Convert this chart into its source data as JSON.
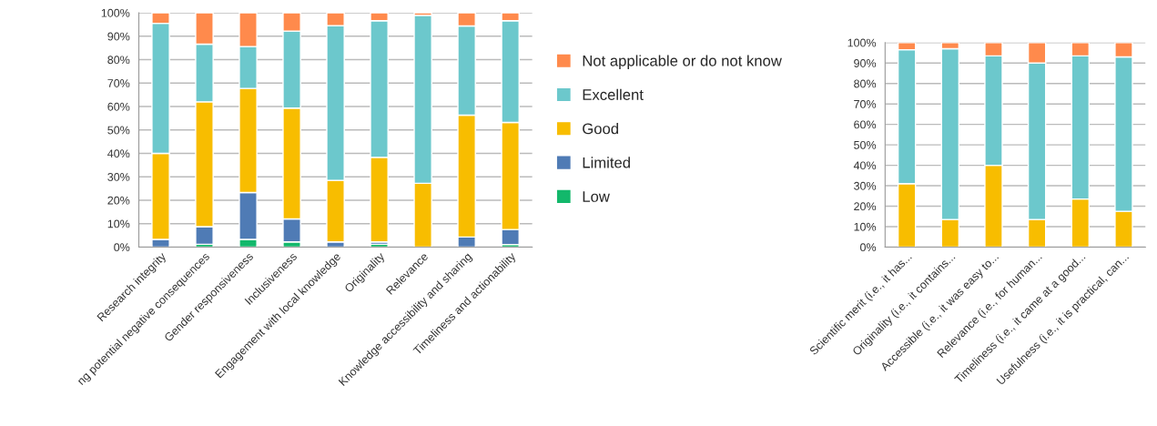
{
  "chart_data": [
    {
      "type": "bar",
      "stacked": true,
      "categories": [
        "Research integrity",
        "ng potential negative consequences",
        "Gender responsiveness",
        "Inclusiveness",
        "Engagement with local knowledge",
        "Originality",
        "Relevance",
        "Knowledge accessibility and sharing",
        "Timeliness and actionability"
      ],
      "series": [
        {
          "name": "Low",
          "color": "#13b86b",
          "values": [
            0,
            1.2,
            3.3,
            2.2,
            0,
            1.2,
            0,
            0,
            1.1
          ]
        },
        {
          "name": "Limited",
          "color": "#4f7bb5",
          "values": [
            3.3,
            7.5,
            20,
            9.8,
            2.2,
            1,
            0,
            4.3,
            6.4
          ]
        },
        {
          "name": "Good",
          "color": "#f8bd00",
          "values": [
            36.7,
            53.3,
            44.4,
            47.3,
            26.3,
            36.1,
            27.2,
            52,
            45.7
          ]
        },
        {
          "name": "Excellent",
          "color": "#6cc8cc",
          "values": [
            55.5,
            24.6,
            17.9,
            32.9,
            66,
            58.3,
            71.7,
            38.1,
            43.4
          ]
        },
        {
          "name": "Not applicable or do not know",
          "color": "#ff8a4c",
          "values": [
            4.5,
            13.4,
            14.4,
            7.8,
            5.5,
            3.4,
            1.1,
            5.6,
            3.4
          ]
        }
      ],
      "ylim": [
        0,
        100
      ],
      "yticks": [
        {
          "value": 0,
          "label": "0%"
        },
        {
          "value": 10,
          "label": "10%"
        },
        {
          "value": 20,
          "label": "20%"
        },
        {
          "value": 30,
          "label": "30%"
        },
        {
          "value": 40,
          "label": "40%"
        },
        {
          "value": 50,
          "label": "50%"
        },
        {
          "value": 60,
          "label": "60%"
        },
        {
          "value": 70,
          "label": "70%"
        },
        {
          "value": 80,
          "label": "80%"
        },
        {
          "value": 90,
          "label": "90%"
        },
        {
          "value": 100,
          "label": "100%"
        }
      ],
      "grid": "y",
      "legend": "right"
    },
    {
      "type": "bar",
      "stacked": true,
      "categories": [
        "Scientific merit (i.e., it has...",
        "Originality (i.e., it contains...",
        "Accessible (i.e., it was easy to...",
        "Relevance (i.e., for human...",
        "Timeliness (i.e., it came at a good...",
        "Usefulness (i.e., it is practical, can..."
      ],
      "series": [
        {
          "color": "#f8bd00",
          "values": [
            31,
            13.5,
            40,
            13.5,
            23.5,
            17.5
          ]
        },
        {
          "color": "#6cc8cc",
          "values": [
            65.5,
            83.5,
            53.5,
            76.5,
            70,
            75.5
          ]
        },
        {
          "color": "#ff8a4c",
          "values": [
            3.5,
            3,
            6.5,
            10,
            6.5,
            7
          ]
        }
      ],
      "ylim": [
        0,
        100
      ],
      "yticks": [
        {
          "value": 0,
          "label": "0%"
        },
        {
          "value": 10,
          "label": "10%"
        },
        {
          "value": 20,
          "label": "20%"
        },
        {
          "value": 30,
          "label": "30%"
        },
        {
          "value": 40,
          "label": "40%"
        },
        {
          "value": 50,
          "label": "50%"
        },
        {
          "value": 60,
          "label": "60%"
        },
        {
          "value": 70,
          "label": "70%"
        },
        {
          "value": 80,
          "label": "80%"
        },
        {
          "value": 90,
          "label": "90%"
        },
        {
          "value": 100,
          "label": "100%"
        }
      ],
      "grid": "y"
    }
  ]
}
